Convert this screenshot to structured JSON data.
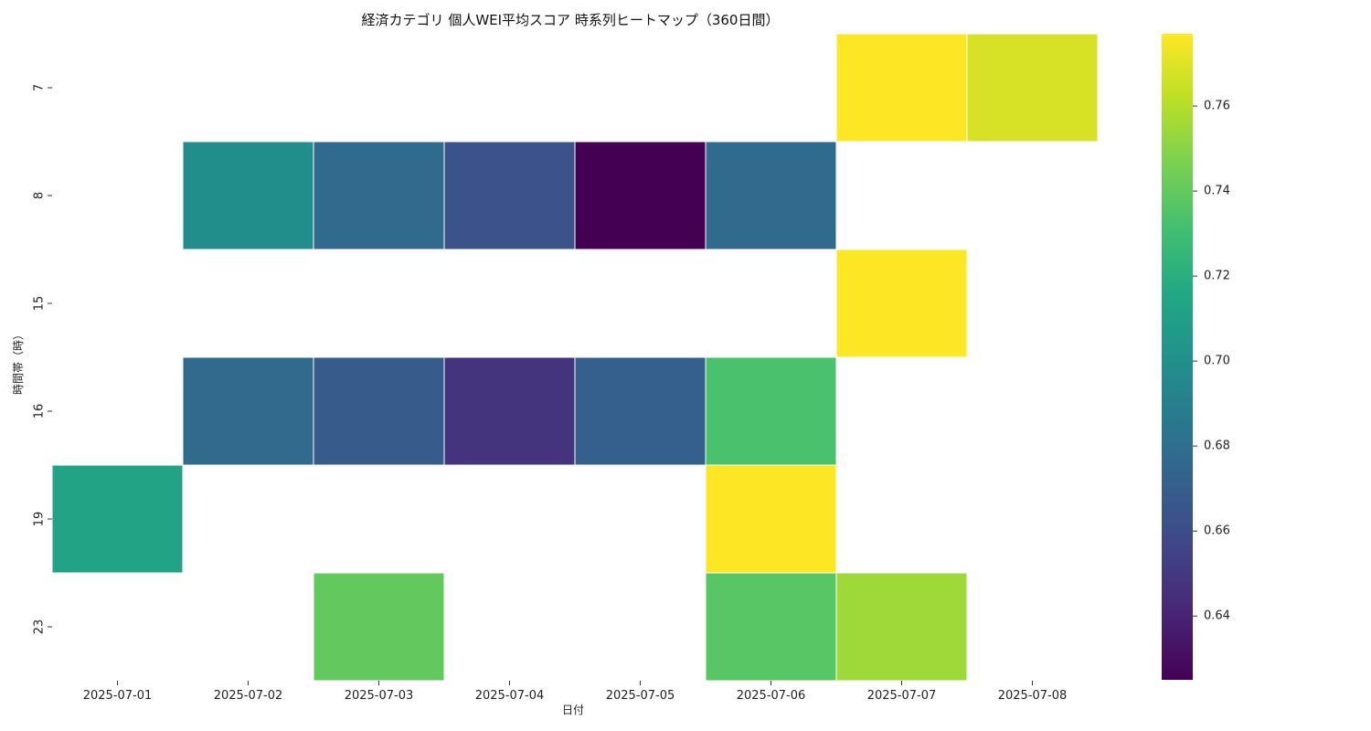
{
  "chart_data": {
    "type": "heatmap",
    "title": "経済カテゴリ 個人WEI平均スコア 時系列ヒートマップ（360日間）",
    "xlabel": "日付",
    "ylabel": "時間帯（時）",
    "x": [
      "2025-07-01",
      "2025-07-02",
      "2025-07-03",
      "2025-07-04",
      "2025-07-05",
      "2025-07-06",
      "2025-07-07",
      "2025-07-08"
    ],
    "y": [
      "7",
      "8",
      "15",
      "16",
      "19",
      "23"
    ],
    "values": [
      [
        null,
        null,
        null,
        null,
        null,
        null,
        0.777,
        0.768
      ],
      [
        null,
        0.699,
        0.677,
        0.663,
        0.625,
        0.677,
        null,
        null
      ],
      [
        null,
        null,
        null,
        null,
        null,
        null,
        0.777,
        null
      ],
      [
        null,
        0.677,
        0.669,
        0.648,
        0.671,
        0.733,
        null,
        null
      ],
      [
        0.713,
        null,
        null,
        null,
        null,
        0.777,
        null,
        null
      ],
      [
        null,
        null,
        0.74,
        null,
        null,
        0.737,
        0.755,
        null
      ]
    ],
    "colormap": "viridis",
    "vmin": 0.625,
    "vmax": 0.777,
    "colorbar_ticks": [
      0.64,
      0.66,
      0.68,
      0.7,
      0.72,
      0.74,
      0.76
    ],
    "grid": false,
    "missing_color": "#ffffff"
  }
}
